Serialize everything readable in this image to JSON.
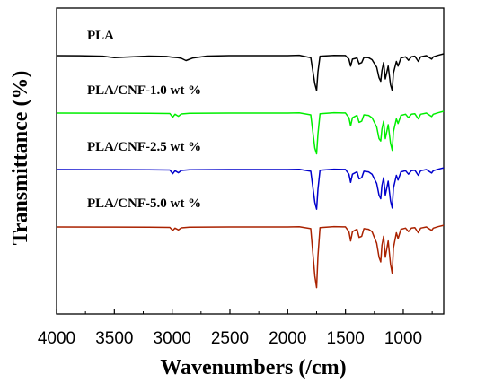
{
  "chart_data": {
    "type": "line",
    "title": "",
    "xlabel": "Wavenumbers (/cm)",
    "ylabel": "Transmittance (%)",
    "xlim": [
      4000,
      650
    ],
    "x_reversed": true,
    "xticks": [
      4000,
      3500,
      3000,
      2500,
      2000,
      1500,
      1000
    ],
    "y_ticks_shown": false,
    "grid": false,
    "legend": "inline labels above each trace",
    "series": [
      {
        "name": "PLA",
        "color": "#000000",
        "points": [
          [
            4000,
            0
          ],
          [
            3800,
            -0.1
          ],
          [
            3600,
            -0.5
          ],
          [
            3500,
            -1.8
          ],
          [
            3400,
            -1.2
          ],
          [
            3200,
            -0.4
          ],
          [
            3050,
            -0.7
          ],
          [
            3000,
            -1.3
          ],
          [
            2950,
            -1.8
          ],
          [
            2920,
            -2.3
          ],
          [
            2880,
            -4.2
          ],
          [
            2860,
            -3.5
          ],
          [
            2820,
            -2.0
          ],
          [
            2700,
            -0.4
          ],
          [
            2500,
            0
          ],
          [
            2200,
            0
          ],
          [
            2000,
            0
          ],
          [
            1900,
            0.3
          ],
          [
            1800,
            -1.8
          ],
          [
            1765,
            -24
          ],
          [
            1750,
            -30
          ],
          [
            1738,
            -14
          ],
          [
            1720,
            -0.5
          ],
          [
            1600,
            0.2
          ],
          [
            1500,
            0.1
          ],
          [
            1470,
            -3
          ],
          [
            1455,
            -9
          ],
          [
            1440,
            -3
          ],
          [
            1400,
            -2
          ],
          [
            1382,
            -7
          ],
          [
            1360,
            -6
          ],
          [
            1340,
            -1.5
          ],
          [
            1300,
            -1.8
          ],
          [
            1270,
            -3.5
          ],
          [
            1230,
            -10
          ],
          [
            1210,
            -19
          ],
          [
            1195,
            -22
          ],
          [
            1185,
            -13
          ],
          [
            1170,
            -6
          ],
          [
            1155,
            -20
          ],
          [
            1130,
            -9
          ],
          [
            1110,
            -25
          ],
          [
            1095,
            -30
          ],
          [
            1085,
            -15
          ],
          [
            1060,
            -5
          ],
          [
            1045,
            -9
          ],
          [
            1020,
            -2
          ],
          [
            980,
            -1
          ],
          [
            955,
            -4
          ],
          [
            930,
            -1
          ],
          [
            900,
            -0.5
          ],
          [
            870,
            -5
          ],
          [
            850,
            -1
          ],
          [
            800,
            0
          ],
          [
            755,
            -3
          ],
          [
            740,
            -1
          ],
          [
            700,
            0.2
          ],
          [
            650,
            1.5
          ]
        ]
      },
      {
        "name": "PLA/CNF-1.0 wt %",
        "color": "#00ee00",
        "points": [
          [
            4000,
            0
          ],
          [
            3600,
            -0.1
          ],
          [
            3200,
            -0.2
          ],
          [
            3020,
            -0.4
          ],
          [
            2995,
            -3.5
          ],
          [
            2975,
            -1.0
          ],
          [
            2945,
            -2.8
          ],
          [
            2920,
            -0.8
          ],
          [
            2850,
            -0.2
          ],
          [
            2500,
            0
          ],
          [
            2000,
            0
          ],
          [
            1900,
            0.2
          ],
          [
            1800,
            -1.5
          ],
          [
            1765,
            -30
          ],
          [
            1750,
            -35
          ],
          [
            1738,
            -18
          ],
          [
            1720,
            -0.5
          ],
          [
            1600,
            0.3
          ],
          [
            1500,
            0.1
          ],
          [
            1470,
            -4
          ],
          [
            1455,
            -11
          ],
          [
            1440,
            -4
          ],
          [
            1400,
            -2
          ],
          [
            1382,
            -8
          ],
          [
            1360,
            -7
          ],
          [
            1340,
            -1.5
          ],
          [
            1300,
            -2
          ],
          [
            1270,
            -4
          ],
          [
            1230,
            -12
          ],
          [
            1210,
            -22
          ],
          [
            1195,
            -24
          ],
          [
            1185,
            -14
          ],
          [
            1170,
            -7
          ],
          [
            1155,
            -22
          ],
          [
            1130,
            -10
          ],
          [
            1110,
            -26
          ],
          [
            1095,
            -32
          ],
          [
            1085,
            -16
          ],
          [
            1060,
            -5
          ],
          [
            1045,
            -9
          ],
          [
            1020,
            -2
          ],
          [
            980,
            -1
          ],
          [
            955,
            -4
          ],
          [
            930,
            -1
          ],
          [
            900,
            -0.5
          ],
          [
            870,
            -5
          ],
          [
            850,
            -1
          ],
          [
            800,
            0
          ],
          [
            755,
            -3
          ],
          [
            740,
            -1
          ],
          [
            700,
            0.2
          ],
          [
            650,
            1.5
          ]
        ]
      },
      {
        "name": "PLA/CNF-2.5 wt %",
        "color": "#0000cc",
        "points": [
          [
            4000,
            0
          ],
          [
            3600,
            -0.1
          ],
          [
            3200,
            -0.2
          ],
          [
            3020,
            -0.4
          ],
          [
            2995,
            -3.5
          ],
          [
            2975,
            -1.0
          ],
          [
            2945,
            -2.8
          ],
          [
            2920,
            -0.8
          ],
          [
            2850,
            -0.2
          ],
          [
            2500,
            0
          ],
          [
            2000,
            0
          ],
          [
            1900,
            0.2
          ],
          [
            1800,
            -1.5
          ],
          [
            1765,
            -28
          ],
          [
            1750,
            -34
          ],
          [
            1738,
            -17
          ],
          [
            1720,
            -0.5
          ],
          [
            1600,
            0.3
          ],
          [
            1500,
            0.1
          ],
          [
            1470,
            -4
          ],
          [
            1455,
            -11
          ],
          [
            1440,
            -4
          ],
          [
            1400,
            -2
          ],
          [
            1382,
            -8
          ],
          [
            1360,
            -7
          ],
          [
            1340,
            -1.5
          ],
          [
            1300,
            -2
          ],
          [
            1270,
            -4
          ],
          [
            1230,
            -12
          ],
          [
            1210,
            -22
          ],
          [
            1195,
            -25
          ],
          [
            1185,
            -14
          ],
          [
            1170,
            -7
          ],
          [
            1155,
            -22
          ],
          [
            1130,
            -10
          ],
          [
            1110,
            -27
          ],
          [
            1095,
            -33
          ],
          [
            1085,
            -16
          ],
          [
            1060,
            -5
          ],
          [
            1045,
            -9
          ],
          [
            1020,
            -2
          ],
          [
            980,
            -1
          ],
          [
            955,
            -4
          ],
          [
            930,
            -1
          ],
          [
            900,
            -0.5
          ],
          [
            870,
            -5
          ],
          [
            850,
            -1
          ],
          [
            800,
            0
          ],
          [
            755,
            -3
          ],
          [
            740,
            -1
          ],
          [
            700,
            0.2
          ],
          [
            650,
            1.5
          ]
        ]
      },
      {
        "name": "PLA/CNF-5.0 wt %",
        "color": "#aa2200",
        "points": [
          [
            4000,
            0
          ],
          [
            3600,
            -0.1
          ],
          [
            3200,
            -0.2
          ],
          [
            3020,
            -0.4
          ],
          [
            2995,
            -3.0
          ],
          [
            2975,
            -1.0
          ],
          [
            2945,
            -2.5
          ],
          [
            2920,
            -0.8
          ],
          [
            2850,
            -0.2
          ],
          [
            2500,
            0
          ],
          [
            2000,
            0
          ],
          [
            1900,
            0.2
          ],
          [
            1800,
            -1.5
          ],
          [
            1765,
            -42
          ],
          [
            1750,
            -52
          ],
          [
            1738,
            -25
          ],
          [
            1720,
            -0.5
          ],
          [
            1600,
            0.3
          ],
          [
            1500,
            0.1
          ],
          [
            1470,
            -4
          ],
          [
            1455,
            -12
          ],
          [
            1440,
            -4
          ],
          [
            1400,
            -2
          ],
          [
            1382,
            -9
          ],
          [
            1360,
            -8
          ],
          [
            1340,
            -1.5
          ],
          [
            1300,
            -2
          ],
          [
            1270,
            -4
          ],
          [
            1230,
            -14
          ],
          [
            1210,
            -26
          ],
          [
            1195,
            -30
          ],
          [
            1185,
            -16
          ],
          [
            1170,
            -8
          ],
          [
            1155,
            -26
          ],
          [
            1130,
            -12
          ],
          [
            1110,
            -32
          ],
          [
            1095,
            -40
          ],
          [
            1085,
            -18
          ],
          [
            1060,
            -5
          ],
          [
            1045,
            -10
          ],
          [
            1020,
            -2
          ],
          [
            980,
            -1
          ],
          [
            955,
            -4
          ],
          [
            930,
            -1
          ],
          [
            900,
            -0.5
          ],
          [
            870,
            -5
          ],
          [
            850,
            -1
          ],
          [
            800,
            0
          ],
          [
            755,
            -3
          ],
          [
            740,
            -1
          ],
          [
            700,
            0.2
          ],
          [
            650,
            1.5
          ]
        ]
      }
    ]
  }
}
